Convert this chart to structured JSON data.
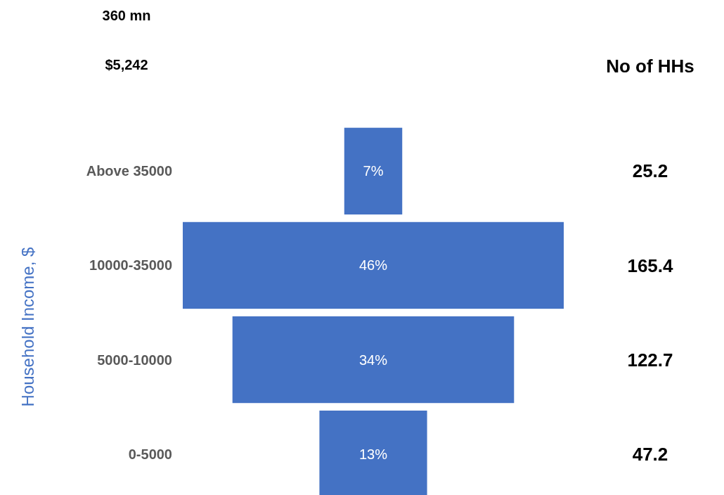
{
  "chart_data": {
    "type": "other",
    "ylabel": "Household Income, $",
    "categories": [
      "Above 35000",
      "10000-35000",
      "5000-10000",
      "0-5000"
    ],
    "values": [
      7,
      46,
      34,
      13
    ],
    "value_labels": [
      "7%",
      "46%",
      "34%",
      "13%"
    ],
    "color": "#4472c4",
    "annotations": [
      {
        "text": "360 mn"
      },
      {
        "text": "$5,242"
      },
      {
        "text": "No of HHs"
      },
      {
        "text": "25.2",
        "y": "Above 35000"
      },
      {
        "text": "165.4",
        "y": "10000-35000"
      },
      {
        "text": "122.7",
        "y": "5000-10000"
      },
      {
        "text": "47.2",
        "y": "0-5000"
      }
    ]
  }
}
